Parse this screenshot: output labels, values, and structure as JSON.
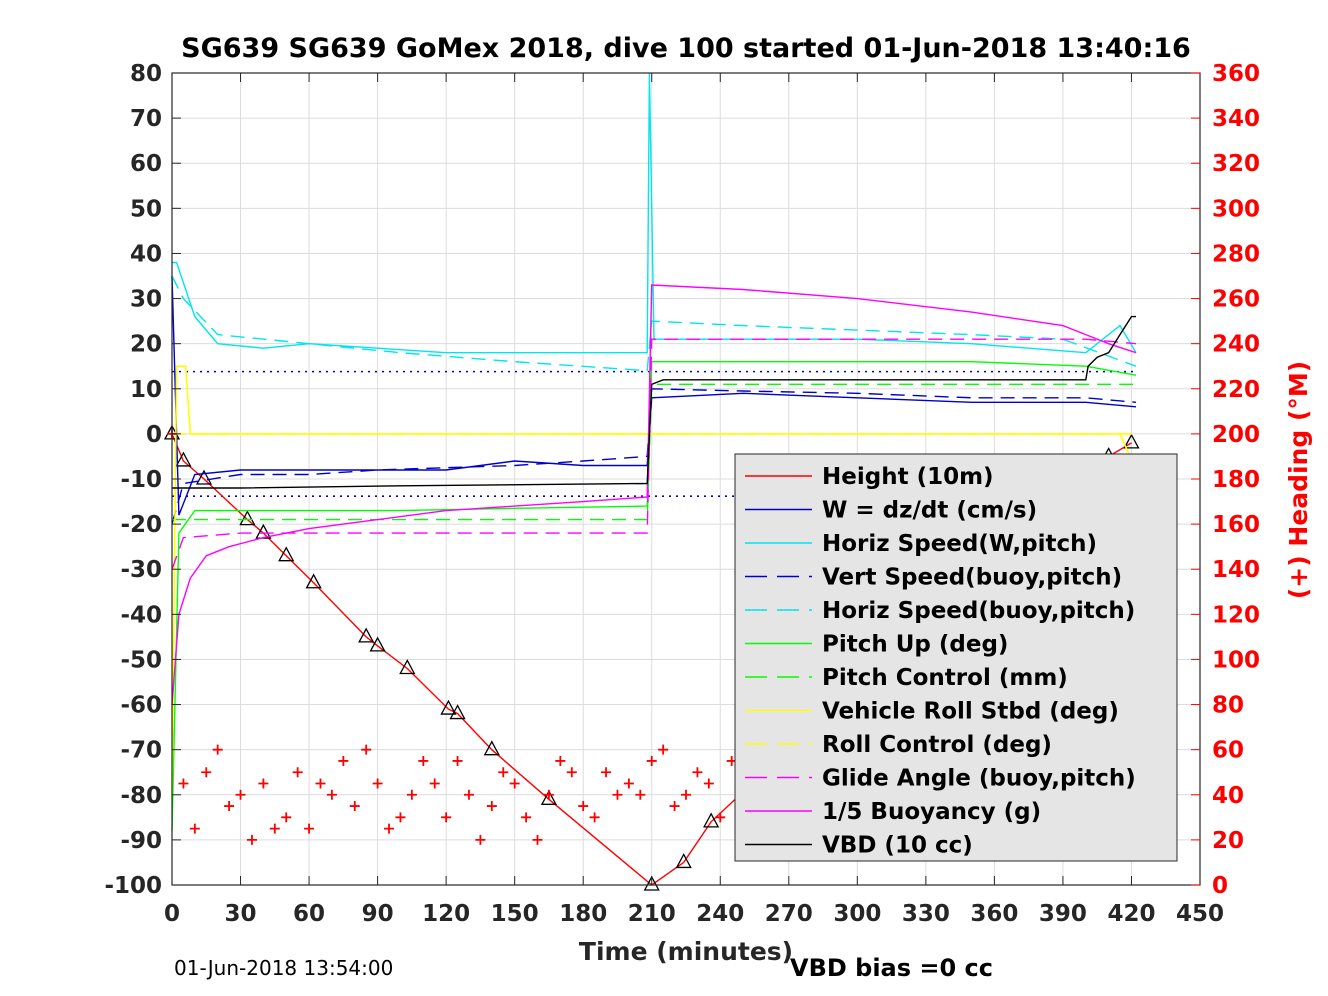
{
  "chart_data": {
    "type": "line",
    "title": "SG639 SG639 GoMex 2018, dive 100 started 01-Jun-2018 13:40:16",
    "xlabel": "Time (minutes)",
    "ylabel_right": "(+) Heading (°M)",
    "xlim": [
      0,
      450
    ],
    "ylim_left": [
      -100,
      80
    ],
    "ylim_right": [
      0,
      360
    ],
    "x_ticks": [
      0,
      30,
      60,
      90,
      120,
      150,
      180,
      210,
      240,
      270,
      300,
      330,
      360,
      390,
      420,
      450
    ],
    "y_ticks_left": [
      80,
      70,
      60,
      50,
      40,
      30,
      20,
      10,
      0,
      -10,
      -20,
      -30,
      -40,
      -50,
      -60,
      -70,
      -80,
      -90,
      -100
    ],
    "y_ticks_right": [
      360,
      340,
      320,
      300,
      280,
      260,
      240,
      220,
      200,
      180,
      160,
      140,
      120,
      100,
      80,
      60,
      40,
      20,
      0
    ],
    "grid": true,
    "legend_position": "bottom-right",
    "reference_lines": [
      13.8,
      -13.8
    ],
    "series": [
      {
        "name": "Height (10m)",
        "color": "#ff0000",
        "style": "solid",
        "marker": "triangle",
        "x": [
          0,
          5,
          14,
          33,
          40,
          50,
          62,
          85,
          90,
          103,
          121,
          125,
          140,
          165,
          210,
          224,
          236,
          255,
          268,
          290,
          310,
          330,
          350,
          365,
          380,
          395,
          410,
          420
        ],
        "y": [
          0,
          -6,
          -10,
          -19,
          -22,
          -27,
          -33,
          -45,
          -47,
          -52,
          -61,
          -62,
          -70,
          -81,
          -100,
          -95,
          -86,
          -77,
          -70,
          -60,
          -51,
          -41,
          -32,
          -25,
          -18,
          -11,
          -5,
          -2
        ]
      },
      {
        "name": "W = dz/dt (cm/s)",
        "color": "#0000cc",
        "style": "solid",
        "x": [
          0,
          3,
          10,
          30,
          60,
          90,
          120,
          150,
          180,
          208,
          210,
          250,
          300,
          350,
          400,
          422
        ],
        "y": [
          35,
          -18,
          -9,
          -8,
          -8,
          -8,
          -8,
          -6,
          -7,
          -7,
          8,
          9,
          8,
          7,
          7,
          6
        ]
      },
      {
        "name": "Horiz Speed(W,pitch)",
        "color": "#00e5ee",
        "style": "solid",
        "x": [
          0,
          2,
          10,
          20,
          40,
          60,
          90,
          120,
          150,
          180,
          208,
          209,
          211,
          250,
          300,
          350,
          400,
          415,
          422
        ],
        "y": [
          38,
          38,
          26,
          20,
          19,
          20,
          19,
          18,
          18,
          18,
          18,
          80,
          21,
          21,
          21,
          20,
          18,
          24,
          18
        ]
      },
      {
        "name": "Vert Speed(buoy,pitch)",
        "color": "#0000cc",
        "style": "dashed",
        "x": [
          0,
          5,
          30,
          60,
          90,
          120,
          150,
          180,
          208,
          210,
          250,
          300,
          350,
          400,
          422
        ],
        "y": [
          -20,
          -11,
          -9,
          -9,
          -8,
          -7.5,
          -7,
          -6,
          -5,
          10,
          9.5,
          9,
          8,
          8,
          7
        ]
      },
      {
        "name": "Horiz Speed(buoy,pitch)",
        "color": "#00e5ee",
        "style": "dashed",
        "x": [
          0,
          5,
          20,
          60,
          100,
          150,
          208,
          210,
          250,
          300,
          350,
          390,
          422
        ],
        "y": [
          35,
          30,
          22,
          20,
          18,
          16,
          14,
          25,
          24,
          23,
          22,
          21,
          15
        ]
      },
      {
        "name": "Pitch Up (deg)",
        "color": "#00ff00",
        "style": "solid",
        "x": [
          0,
          3,
          10,
          30,
          60,
          100,
          150,
          208,
          210,
          250,
          300,
          350,
          400,
          422
        ],
        "y": [
          -88,
          -22,
          -17,
          -17,
          -17,
          -17,
          -16.5,
          -16,
          16,
          16,
          16,
          16,
          15,
          13
        ]
      },
      {
        "name": "Pitch Control (mm)",
        "color": "#00ff00",
        "style": "dashed",
        "x": [
          0,
          208,
          210,
          422
        ],
        "y": [
          -19,
          -19,
          11,
          11
        ]
      },
      {
        "name": "Vehicle Roll Stbd (deg)",
        "color": "#ffff00",
        "style": "solid",
        "x": [
          0,
          2,
          6,
          8,
          30,
          60,
          90,
          120,
          150,
          180,
          208,
          210,
          250,
          300,
          350,
          400,
          415,
          422
        ],
        "y": [
          -80,
          15,
          15,
          0,
          0,
          0,
          0,
          0,
          0,
          0,
          0,
          0,
          0,
          0,
          0,
          0,
          0,
          -8
        ]
      },
      {
        "name": "Roll Control (deg)",
        "color": "#ffff00",
        "style": "dashed",
        "x": [
          0,
          422
        ],
        "y": [
          0,
          0
        ]
      },
      {
        "name": "Glide Angle (buoy,pitch)",
        "color": "#ff00ff",
        "style": "dashed",
        "x": [
          0,
          5,
          30,
          100,
          208,
          210,
          300,
          400,
          422
        ],
        "y": [
          -30,
          -23,
          -22,
          -22,
          -22,
          21,
          21,
          21,
          20
        ]
      },
      {
        "name": "1/5 Buoyancy (g)",
        "color": "#ff00ff",
        "style": "solid",
        "x": [
          0,
          3,
          8,
          15,
          25,
          40,
          60,
          90,
          120,
          150,
          180,
          208,
          210,
          250,
          300,
          350,
          390,
          400,
          410,
          422
        ],
        "y": [
          -60,
          -40,
          -32,
          -27,
          -25,
          -23,
          -21,
          -19,
          -17,
          -16,
          -15,
          -14,
          33,
          32,
          30,
          27,
          24,
          22,
          20,
          18
        ]
      },
      {
        "name": "VBD (10 cc)",
        "color": "#000000",
        "style": "solid",
        "x": [
          0,
          3,
          10,
          30,
          100,
          208,
          210,
          215,
          250,
          300,
          400,
          401,
          405,
          410,
          415,
          420,
          422
        ],
        "y": [
          -12,
          -12,
          -12,
          -12,
          -11.5,
          -11,
          11,
          12,
          12,
          12,
          12,
          15,
          17,
          18,
          22,
          26,
          26
        ]
      },
      {
        "name": "Heading",
        "axis": "right",
        "color": "#ff0000",
        "style": "markers",
        "marker": "plus",
        "x": [
          0,
          5,
          10,
          15,
          20,
          25,
          30,
          35,
          40,
          45,
          50,
          55,
          60,
          65,
          70,
          75,
          80,
          85,
          90,
          95,
          100,
          105,
          110,
          115,
          120,
          125,
          130,
          135,
          140,
          145,
          150,
          155,
          160,
          165,
          170,
          175,
          180,
          185,
          190,
          195,
          200,
          205,
          210,
          215,
          220,
          225,
          230,
          235,
          240,
          245,
          250,
          255,
          260,
          265,
          270,
          275,
          280,
          285,
          290,
          295,
          300,
          305,
          310,
          315,
          320,
          325,
          330,
          335,
          340,
          345,
          350,
          355,
          360,
          365,
          370,
          375,
          380,
          385,
          390,
          395,
          400,
          405,
          410,
          415,
          420
        ],
        "y": [
          200,
          45,
          25,
          50,
          60,
          35,
          40,
          20,
          45,
          25,
          30,
          50,
          25,
          45,
          40,
          55,
          35,
          60,
          45,
          25,
          30,
          40,
          55,
          45,
          30,
          55,
          40,
          20,
          35,
          50,
          45,
          30,
          20,
          40,
          55,
          50,
          35,
          30,
          50,
          40,
          45,
          40,
          55,
          60,
          35,
          40,
          50,
          45,
          30,
          55,
          25,
          40,
          30,
          55,
          45,
          40,
          45,
          50,
          40,
          45,
          55,
          35,
          30,
          40,
          50,
          35,
          40,
          45,
          30,
          60,
          55,
          40,
          45,
          35,
          45,
          50,
          40,
          30,
          65,
          40,
          45,
          30,
          40,
          20,
          60
        ]
      }
    ]
  },
  "footer": {
    "timestamp": "01-Jun-2018 13:54:00",
    "vbd_bias": "VBD bias =0 cc"
  }
}
